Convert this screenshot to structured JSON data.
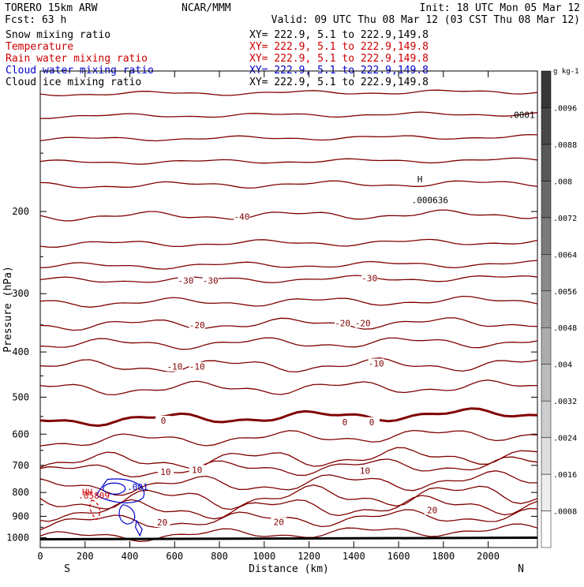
{
  "header": {
    "model": "TORERO  15km ARW",
    "org": "NCAR/MMM",
    "init": "Init: 18 UTC Mon 05 Mar 12",
    "fcst": "Fcst:   63 h",
    "valid": "Valid: 09 UTC Thu 08 Mar 12 (03 CST Thu 08 Mar 12)"
  },
  "legend": [
    {
      "name": "Snow mixing ratio",
      "xy": "XY= 222.9,  5.1 to 222.9,149.8",
      "color": "#000000"
    },
    {
      "name": "Temperature",
      "xy": "XY= 222.9,  5.1 to 222.9,149.8",
      "color": "#cc0000"
    },
    {
      "name": "Rain water mixing ratio",
      "xy": "XY= 222.9,  5.1 to 222.9,149.8",
      "color": "#cc0000"
    },
    {
      "name": "Cloud water mixing ratio",
      "xy": "XY= 222.9,  5.1 to 222.9,149.8",
      "color": "#0000cc"
    },
    {
      "name": "Cloud ice mixing ratio",
      "xy": "XY= 222.9,  5.1 to 222.9,149.8",
      "color": "#000000"
    }
  ],
  "chart_data": {
    "type": "cross-section contour",
    "xlabel": "Distance (km)",
    "ylabel": "Pressure (hPa)",
    "x_ticks": [
      0,
      200,
      400,
      600,
      800,
      1000,
      1200,
      1400,
      1600,
      1800,
      2000
    ],
    "y_ticks": [
      200,
      300,
      400,
      500,
      600,
      700,
      800,
      900,
      1000
    ],
    "xlim": [
      0,
      2220
    ],
    "ylim": [
      1050,
      100
    ],
    "ends": {
      "left": "S",
      "right": "N"
    },
    "colorbar": {
      "unit": "g kg-1",
      "labels": [
        ".0008",
        ".0016",
        ".0024",
        ".0032",
        ".004",
        ".0048",
        ".0056",
        ".0064",
        ".0072",
        ".008",
        ".0088",
        ".0096"
      ],
      "levels": 13
    },
    "temperature_labels": [
      {
        "value": "-40",
        "x": 900,
        "p": 205
      },
      {
        "value": "-30",
        "x": 650,
        "p": 281
      },
      {
        "value": "-30",
        "x": 760,
        "p": 281
      },
      {
        "value": "-30",
        "x": 1470,
        "p": 278
      },
      {
        "value": "-20",
        "x": 700,
        "p": 350
      },
      {
        "value": "-20",
        "x": 1350,
        "p": 347
      },
      {
        "value": "-20",
        "x": 1440,
        "p": 347
      },
      {
        "value": "-10",
        "x": 600,
        "p": 430
      },
      {
        "value": "-10",
        "x": 700,
        "p": 430
      },
      {
        "value": "-10",
        "x": 1500,
        "p": 423
      },
      {
        "value": "0",
        "x": 550,
        "p": 561
      },
      {
        "value": "0",
        "x": 1360,
        "p": 565
      },
      {
        "value": "0",
        "x": 1480,
        "p": 565
      },
      {
        "value": "10",
        "x": 560,
        "p": 723
      },
      {
        "value": "10",
        "x": 700,
        "p": 715
      },
      {
        "value": "10",
        "x": 1450,
        "p": 719
      },
      {
        "value": "20",
        "x": 545,
        "p": 927
      },
      {
        "value": "20",
        "x": 1065,
        "p": 926
      },
      {
        "value": "20",
        "x": 1750,
        "p": 873
      }
    ],
    "annotations": [
      {
        "text": "H",
        "x": 1695,
        "p": 173,
        "color": "#000000"
      },
      {
        "text": ".000636",
        "x": 1740,
        "p": 192,
        "color": "#000000"
      },
      {
        "text": "HH",
        "x": 210,
        "p": 810,
        "color": "#cc0000"
      },
      {
        "text": ".05809",
        "x": 240,
        "p": 825,
        "color": "#cc0000"
      },
      {
        "text": ".001",
        "x": 435,
        "p": 791,
        "color": "#0000cc"
      },
      {
        "text": ".0001",
        "x": 2150,
        "p": 126,
        "color": "#000000"
      }
    ]
  }
}
